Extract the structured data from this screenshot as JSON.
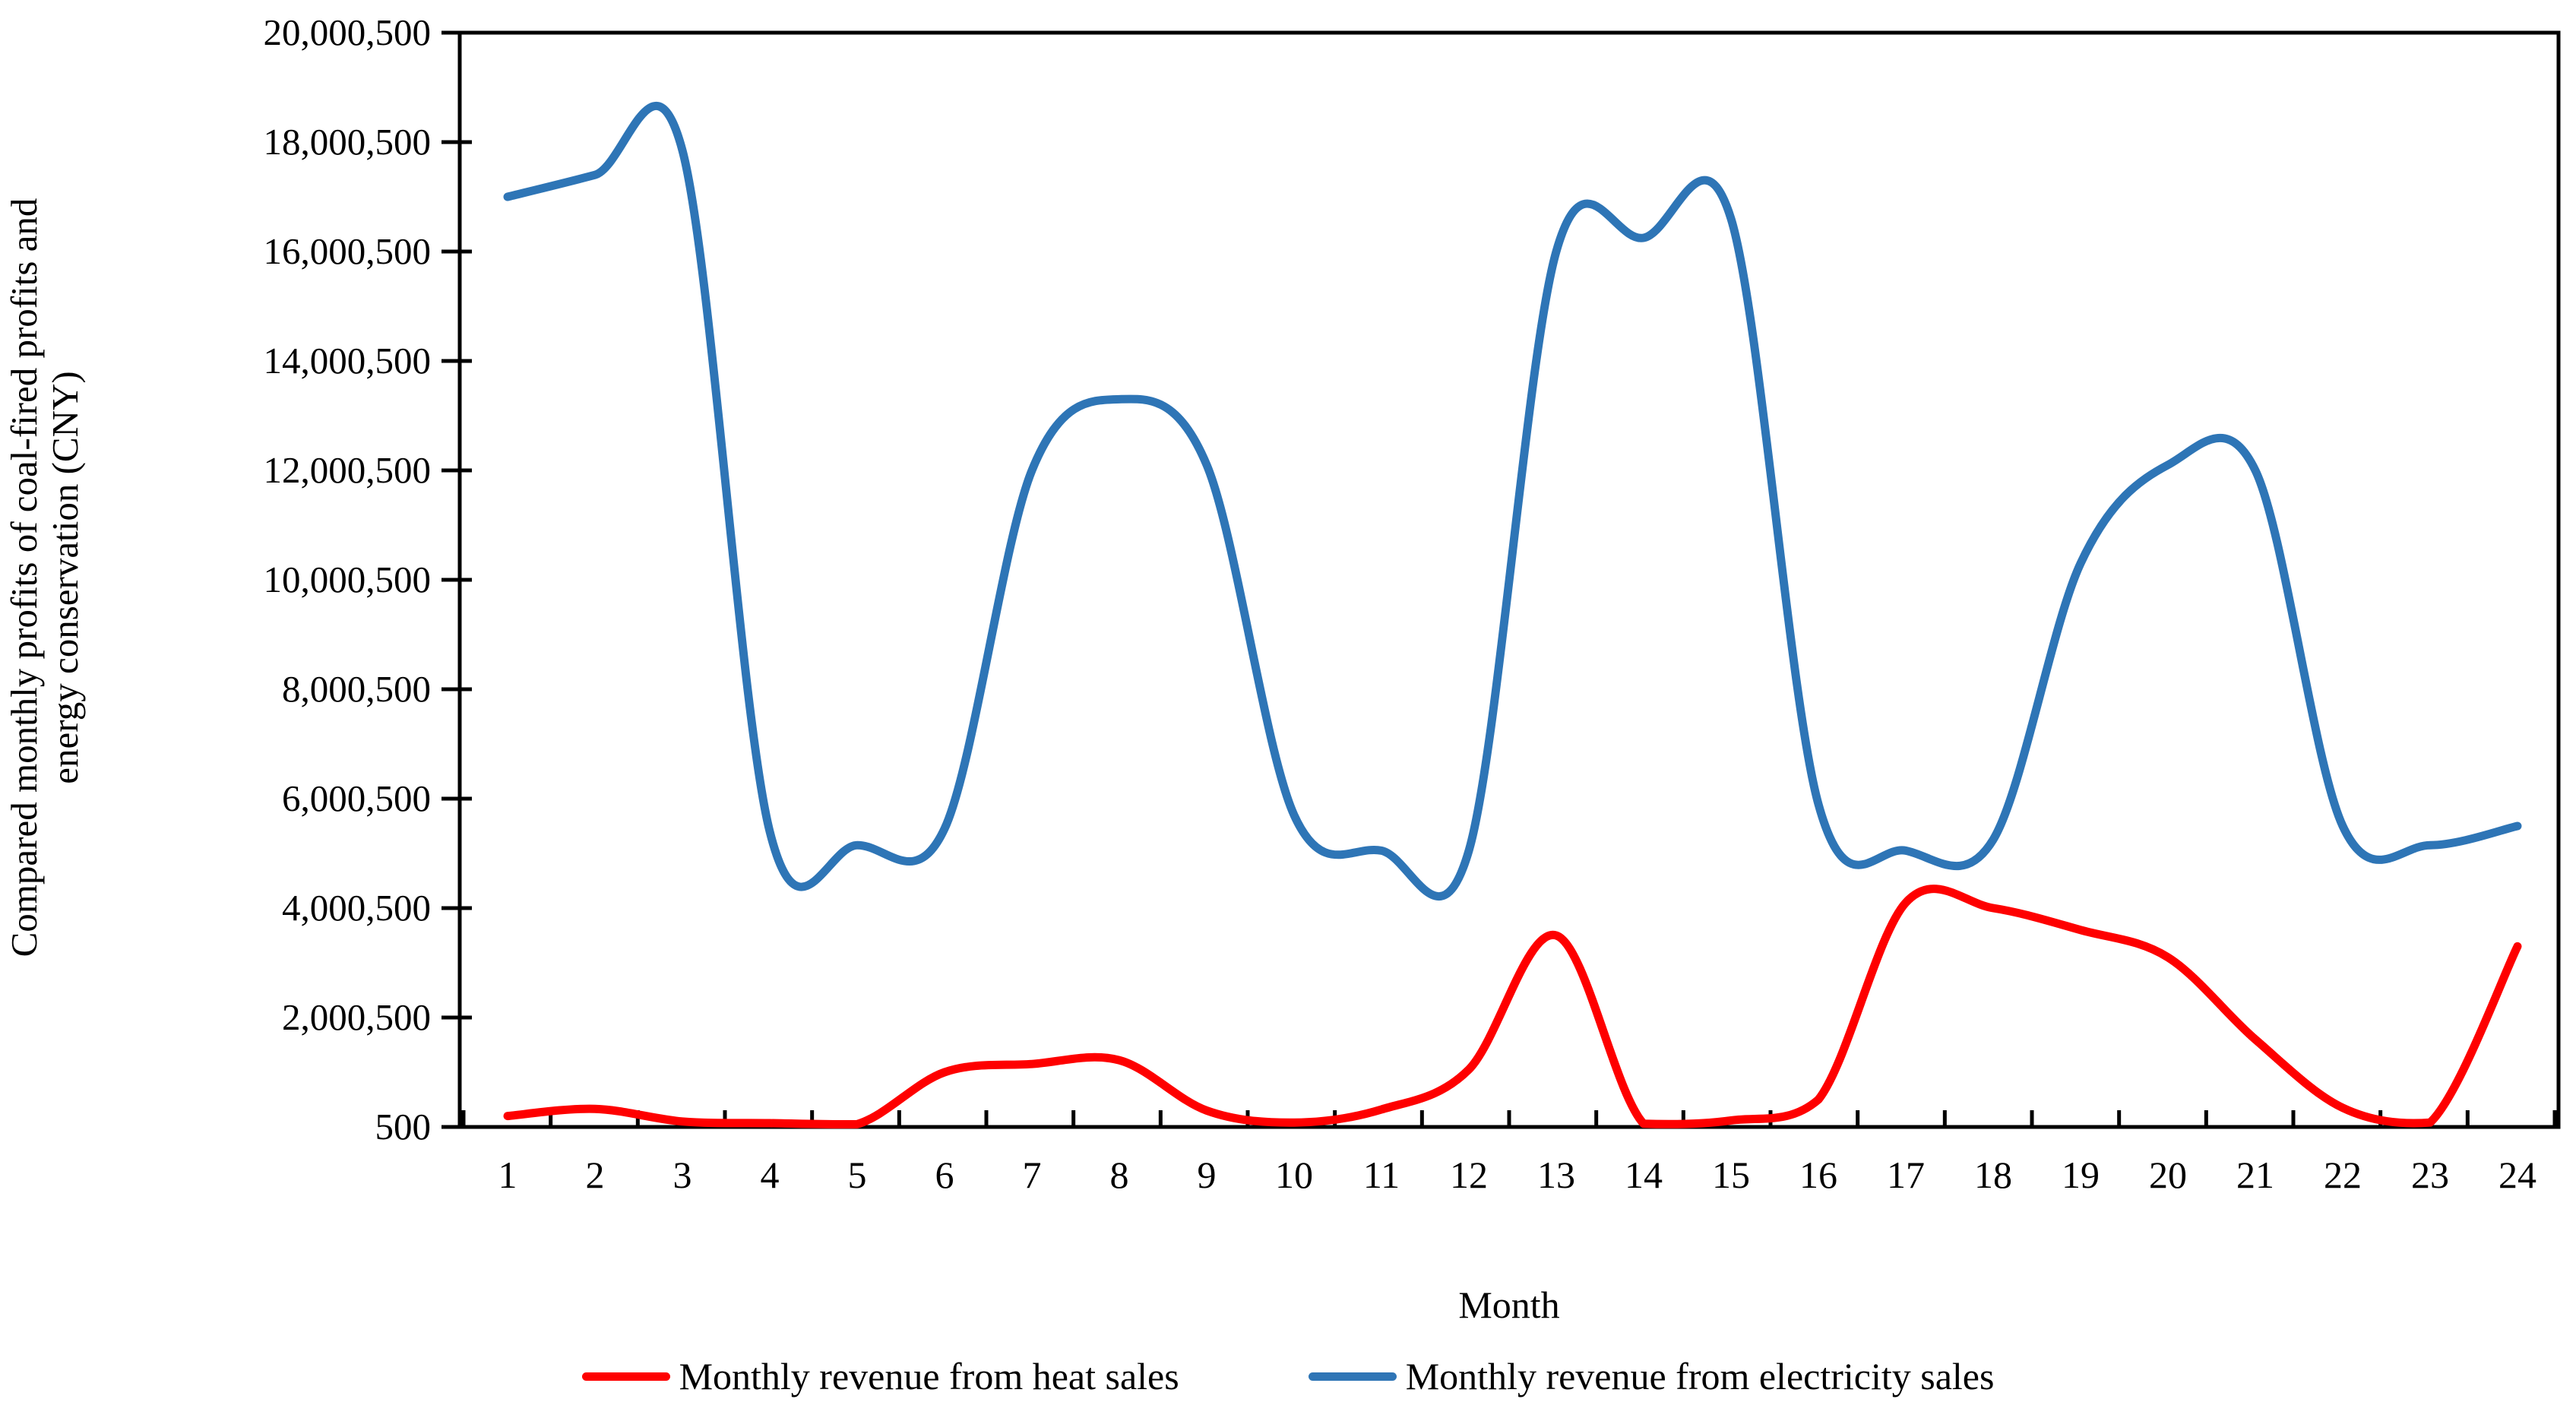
{
  "chart_data": {
    "type": "line",
    "smoothing": "spline",
    "title": "",
    "xlabel": "Month",
    "ylabel_line1": "Compared monthly profits of coal-fired profits and",
    "ylabel_line2": "energy conservation (CNY)",
    "ylabel_full": "Compared monthly profits of coal-fired profits and energy conservation (CNY)",
    "x": [
      1,
      2,
      3,
      4,
      5,
      6,
      7,
      8,
      9,
      10,
      11,
      12,
      13,
      14,
      15,
      16,
      17,
      18,
      19,
      20,
      21,
      22,
      23,
      24
    ],
    "ylim": [
      500,
      20000500
    ],
    "ytick_step": 2000000,
    "y_tick_labels": [
      "20,000,500",
      "18,000,500",
      "16,000,500",
      "14,000,500",
      "12,000,500",
      "10,000,500",
      "8,000,500",
      "6,000,500",
      "4,000,500",
      "2,000,500",
      "500"
    ],
    "grid": false,
    "legend_position": "bottom",
    "axis_color": "#000000",
    "series": [
      {
        "name": "Monthly revenue from heat sales",
        "color": "#fe0000",
        "values": [
          200500,
          330500,
          100500,
          70500,
          50500,
          1000500,
          1150500,
          1220500,
          300500,
          80500,
          320500,
          1050500,
          3500500,
          60500,
          120500,
          500500,
          4100500,
          4000500,
          3600500,
          3100500,
          1600500,
          350500,
          80500,
          3300500
        ]
      },
      {
        "name": "Monthly revenue from electricity sales",
        "color": "#2e75b6",
        "values": [
          17000500,
          17400500,
          17850500,
          5400500,
          5150500,
          5450500,
          12000500,
          13300500,
          12100500,
          5700500,
          5050500,
          5050500,
          16000500,
          16250500,
          16600500,
          5900500,
          5050500,
          5250500,
          10300500,
          12100500,
          12000500,
          5500500,
          5150500,
          5500500
        ]
      }
    ]
  },
  "legend": {
    "heat_label": "Monthly revenue from heat sales",
    "electricity_label": "Monthly revenue from electricity sales"
  },
  "axes": {
    "x_title": "Month",
    "y_title_line1": "Compared monthly profits of coal-fired profits and",
    "y_title_line2": "energy conservation (CNY)"
  }
}
